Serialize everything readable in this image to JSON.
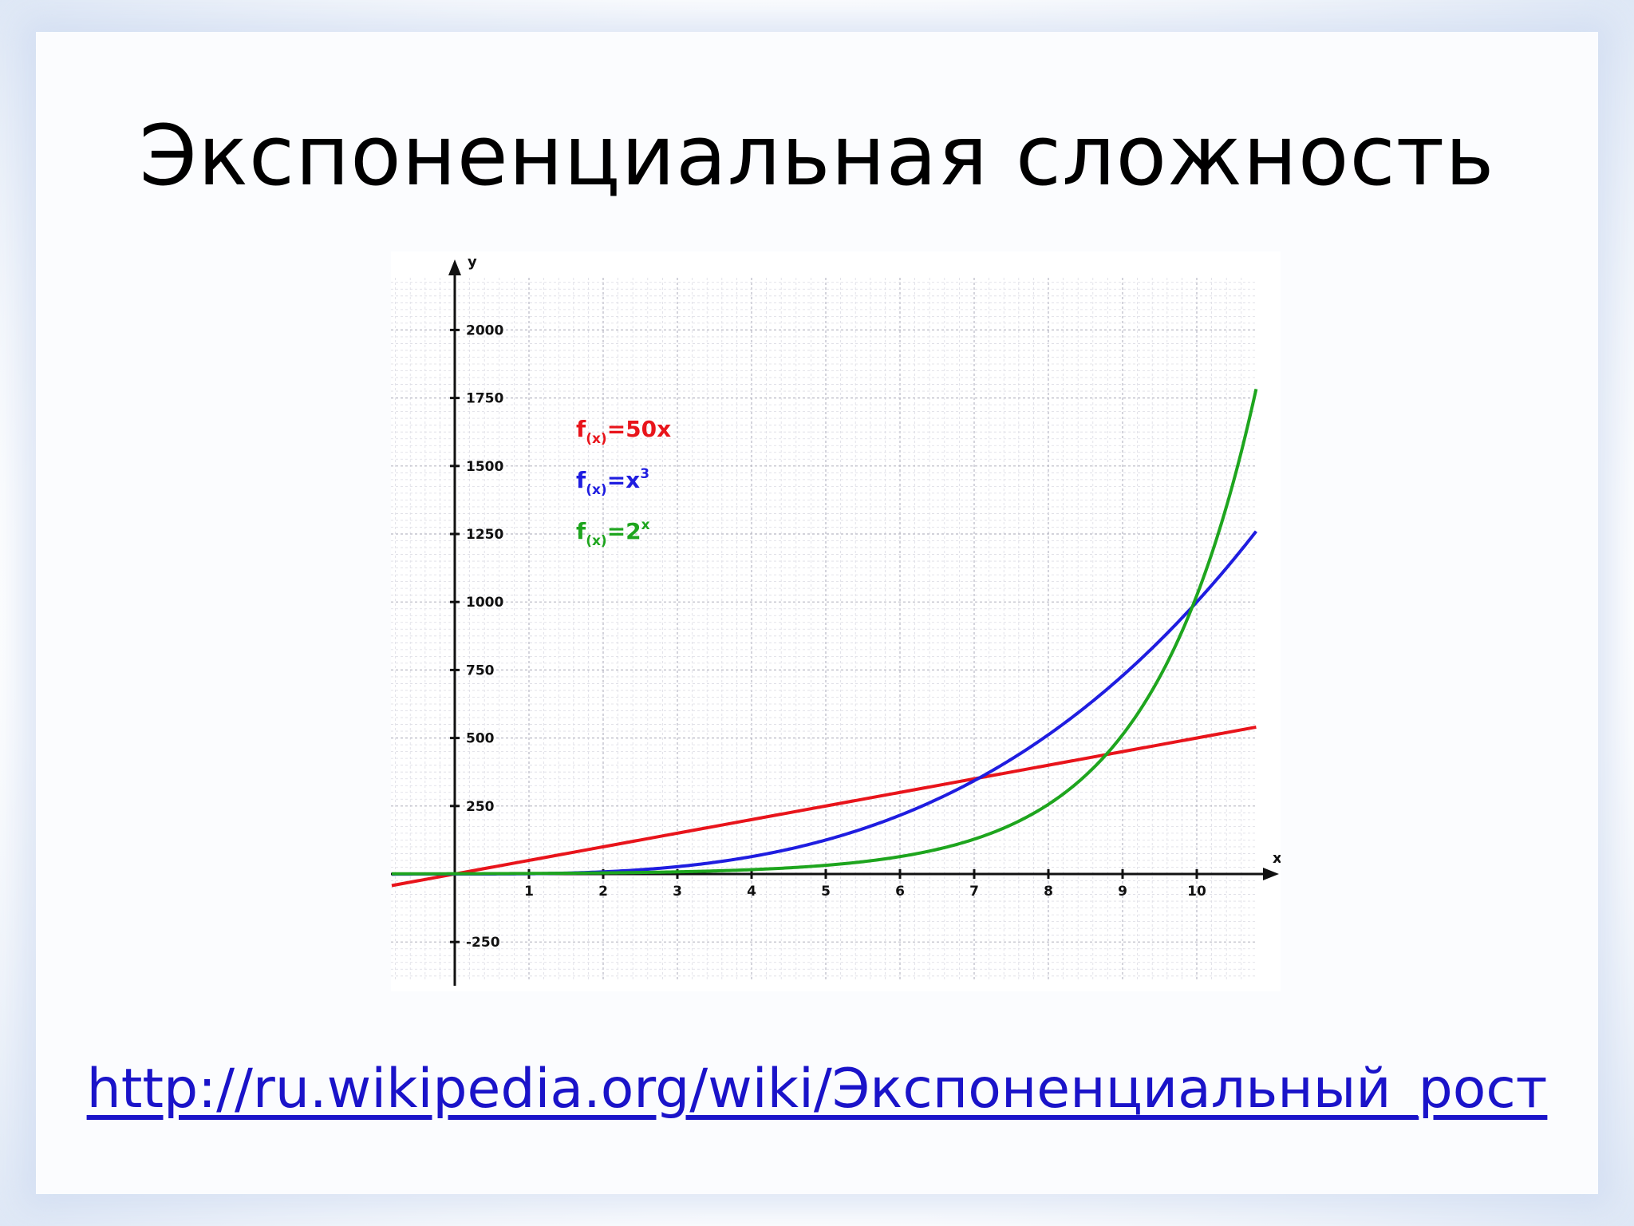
{
  "slide": {
    "title": "Экспоненциальная сложность",
    "link": "http://ru.wikipedia.org/wiki/Экспоненциальный_рост"
  },
  "chart_data": {
    "type": "line",
    "xlabel": "x",
    "ylabel": "y",
    "xlim": [
      -0.85,
      10.8
    ],
    "ylim": [
      -400,
      2250
    ],
    "x_ticks": [
      1,
      2,
      3,
      4,
      5,
      6,
      7,
      8,
      9,
      10
    ],
    "y_ticks": [
      -250,
      250,
      500,
      750,
      1000,
      1250,
      1500,
      1750,
      2000
    ],
    "grid": true,
    "legend_position": "top-left",
    "series": [
      {
        "name": "f(x)=50x",
        "formula": "50x",
        "color": "#e8141b",
        "legend": {
          "base": "f",
          "sub": "(x)",
          "eq": "=50x",
          "sup": ""
        }
      },
      {
        "name": "f(x)=x3",
        "formula": "x^3",
        "color": "#1f1de0",
        "legend": {
          "base": "f",
          "sub": "(x)",
          "eq": "=x",
          "sup": "3"
        }
      },
      {
        "name": "f(x)=2x",
        "formula": "2^x",
        "color": "#1ea51e",
        "legend": {
          "base": "f",
          "sub": "(x)",
          "eq": "=2",
          "sup": "x"
        }
      }
    ]
  }
}
